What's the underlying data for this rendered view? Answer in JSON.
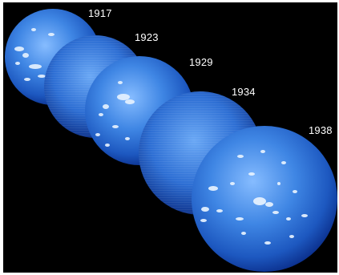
{
  "image": {
    "labels": [
      {
        "id": "label-1917",
        "text": "1917"
      },
      {
        "id": "label-1923",
        "text": "1923"
      },
      {
        "id": "label-1929",
        "text": "1929"
      },
      {
        "id": "label-1934",
        "text": "1934"
      },
      {
        "id": "label-1938",
        "text": "1938"
      }
    ],
    "colors": {
      "background": "#000000",
      "frame": "#ffffff",
      "sun_light": "#7fb6ff",
      "sun_mid": "#2f74d6",
      "sun_dark": "#0b2f8c",
      "plage": "#e8f3ff",
      "label": "#ffffff"
    }
  }
}
